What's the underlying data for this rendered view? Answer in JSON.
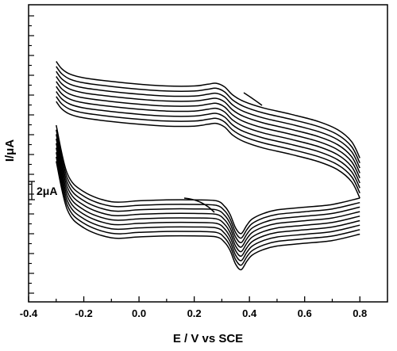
{
  "chart_data": {
    "type": "line",
    "title": "",
    "xlabel": "E / V vs SCE",
    "ylabel": "I/μA",
    "xlim": [
      -0.4,
      0.9
    ],
    "x_ticks": [
      "-0.4",
      "-0.2",
      "0.0",
      "0.2",
      "0.4",
      "0.6",
      "0.8"
    ],
    "y_ticks_labeled": false,
    "scale_bar_label": "2μA",
    "scale_bar_value_uA": 2,
    "grid": false,
    "legend": "none",
    "series_count": 9,
    "series_offset_uA": 0.55,
    "series": [
      {
        "segment": "anodic-sweep (upper branch), innermost cycle",
        "x": [
          -0.3,
          -0.28,
          -0.25,
          -0.2,
          -0.1,
          0.0,
          0.1,
          0.2,
          0.25,
          0.28,
          0.31,
          0.34,
          0.38,
          0.45,
          0.55,
          0.65,
          0.72,
          0.77,
          0.8
        ],
        "y": [
          4.6,
          3.8,
          3.2,
          2.8,
          2.4,
          2.1,
          1.9,
          1.9,
          2.1,
          2.2,
          1.8,
          0.9,
          0.2,
          -0.5,
          -1.2,
          -2.0,
          -2.9,
          -4.2,
          -6.0
        ]
      },
      {
        "segment": "cathodic-sweep (lower branch), innermost cycle",
        "x": [
          0.8,
          0.7,
          0.6,
          0.5,
          0.45,
          0.41,
          0.39,
          0.37,
          0.35,
          0.33,
          0.31,
          0.28,
          0.2,
          0.1,
          0.0,
          -0.1,
          -0.2,
          -0.26,
          -0.3
        ],
        "y": [
          -6.0,
          -6.7,
          -7.0,
          -7.3,
          -7.7,
          -8.3,
          -9.0,
          -9.9,
          -9.3,
          -7.8,
          -6.9,
          -6.3,
          -6.2,
          -6.2,
          -6.3,
          -6.4,
          -5.3,
          -3.3,
          2.0
        ]
      }
    ]
  }
}
